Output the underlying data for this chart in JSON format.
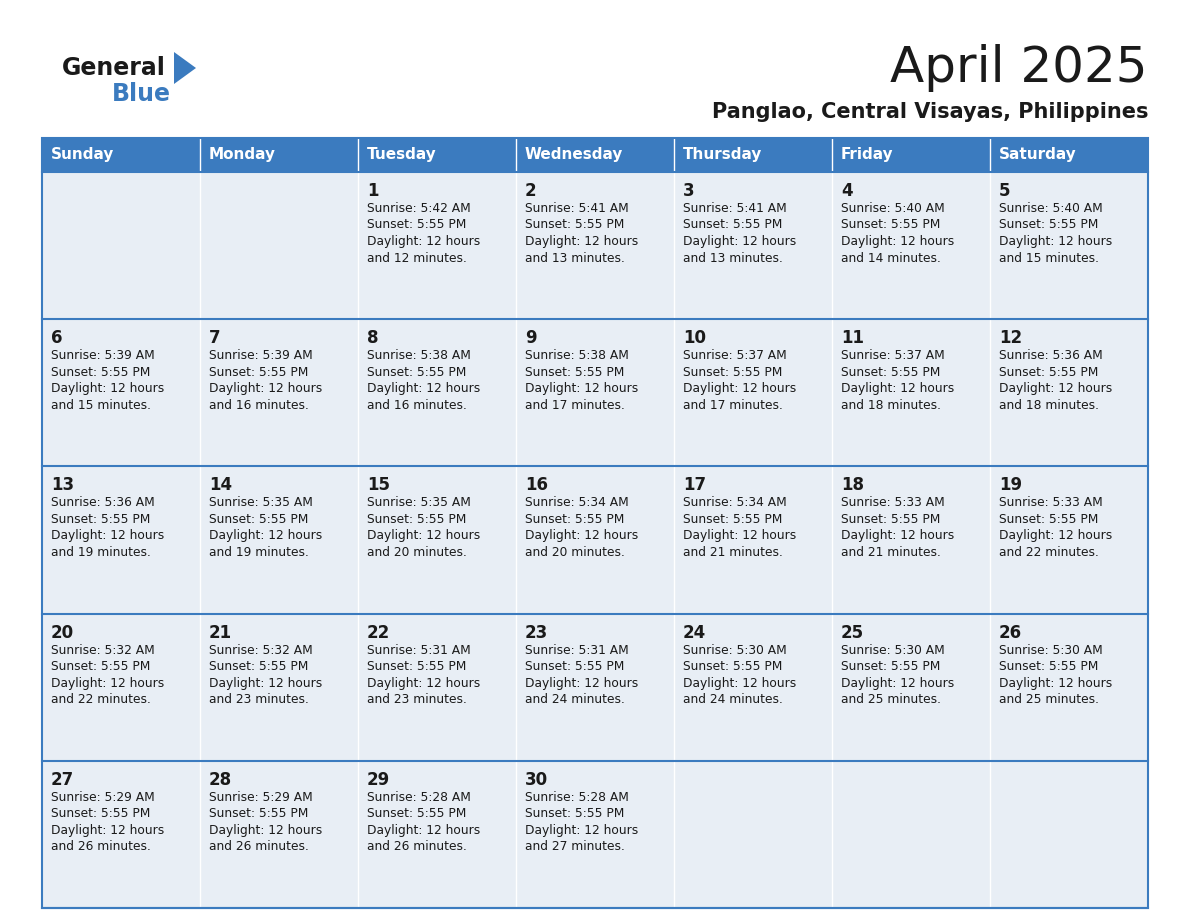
{
  "title": "April 2025",
  "subtitle": "Panglao, Central Visayas, Philippines",
  "header_color": "#3b7bbf",
  "header_text_color": "#ffffff",
  "cell_bg_color": "#e8eef5",
  "border_color": "#3b7bbf",
  "grid_line_color": "#ffffff",
  "row_div_color": "#3b7bbf",
  "days_of_week": [
    "Sunday",
    "Monday",
    "Tuesday",
    "Wednesday",
    "Thursday",
    "Friday",
    "Saturday"
  ],
  "logo_text1": "General",
  "logo_text2": "Blue",
  "logo_color1": "#1a1a1a",
  "logo_color2": "#3b7bbf",
  "logo_triangle_color": "#3b7bbf",
  "title_color": "#1a1a1a",
  "title_fontsize": 36,
  "subtitle_fontsize": 15,
  "day_num_fontsize": 12,
  "cell_text_fontsize": 8.8,
  "header_fontsize": 11,
  "calendar": [
    [
      {
        "day": "",
        "sunrise": "",
        "sunset": "",
        "daylight": ""
      },
      {
        "day": "",
        "sunrise": "",
        "sunset": "",
        "daylight": ""
      },
      {
        "day": "1",
        "sunrise": "5:42 AM",
        "sunset": "5:55 PM",
        "daylight": "12 hours and 12 minutes."
      },
      {
        "day": "2",
        "sunrise": "5:41 AM",
        "sunset": "5:55 PM",
        "daylight": "12 hours and 13 minutes."
      },
      {
        "day": "3",
        "sunrise": "5:41 AM",
        "sunset": "5:55 PM",
        "daylight": "12 hours and 13 minutes."
      },
      {
        "day": "4",
        "sunrise": "5:40 AM",
        "sunset": "5:55 PM",
        "daylight": "12 hours and 14 minutes."
      },
      {
        "day": "5",
        "sunrise": "5:40 AM",
        "sunset": "5:55 PM",
        "daylight": "12 hours and 15 minutes."
      }
    ],
    [
      {
        "day": "6",
        "sunrise": "5:39 AM",
        "sunset": "5:55 PM",
        "daylight": "12 hours and 15 minutes."
      },
      {
        "day": "7",
        "sunrise": "5:39 AM",
        "sunset": "5:55 PM",
        "daylight": "12 hours and 16 minutes."
      },
      {
        "day": "8",
        "sunrise": "5:38 AM",
        "sunset": "5:55 PM",
        "daylight": "12 hours and 16 minutes."
      },
      {
        "day": "9",
        "sunrise": "5:38 AM",
        "sunset": "5:55 PM",
        "daylight": "12 hours and 17 minutes."
      },
      {
        "day": "10",
        "sunrise": "5:37 AM",
        "sunset": "5:55 PM",
        "daylight": "12 hours and 17 minutes."
      },
      {
        "day": "11",
        "sunrise": "5:37 AM",
        "sunset": "5:55 PM",
        "daylight": "12 hours and 18 minutes."
      },
      {
        "day": "12",
        "sunrise": "5:36 AM",
        "sunset": "5:55 PM",
        "daylight": "12 hours and 18 minutes."
      }
    ],
    [
      {
        "day": "13",
        "sunrise": "5:36 AM",
        "sunset": "5:55 PM",
        "daylight": "12 hours and 19 minutes."
      },
      {
        "day": "14",
        "sunrise": "5:35 AM",
        "sunset": "5:55 PM",
        "daylight": "12 hours and 19 minutes."
      },
      {
        "day": "15",
        "sunrise": "5:35 AM",
        "sunset": "5:55 PM",
        "daylight": "12 hours and 20 minutes."
      },
      {
        "day": "16",
        "sunrise": "5:34 AM",
        "sunset": "5:55 PM",
        "daylight": "12 hours and 20 minutes."
      },
      {
        "day": "17",
        "sunrise": "5:34 AM",
        "sunset": "5:55 PM",
        "daylight": "12 hours and 21 minutes."
      },
      {
        "day": "18",
        "sunrise": "5:33 AM",
        "sunset": "5:55 PM",
        "daylight": "12 hours and 21 minutes."
      },
      {
        "day": "19",
        "sunrise": "5:33 AM",
        "sunset": "5:55 PM",
        "daylight": "12 hours and 22 minutes."
      }
    ],
    [
      {
        "day": "20",
        "sunrise": "5:32 AM",
        "sunset": "5:55 PM",
        "daylight": "12 hours and 22 minutes."
      },
      {
        "day": "21",
        "sunrise": "5:32 AM",
        "sunset": "5:55 PM",
        "daylight": "12 hours and 23 minutes."
      },
      {
        "day": "22",
        "sunrise": "5:31 AM",
        "sunset": "5:55 PM",
        "daylight": "12 hours and 23 minutes."
      },
      {
        "day": "23",
        "sunrise": "5:31 AM",
        "sunset": "5:55 PM",
        "daylight": "12 hours and 24 minutes."
      },
      {
        "day": "24",
        "sunrise": "5:30 AM",
        "sunset": "5:55 PM",
        "daylight": "12 hours and 24 minutes."
      },
      {
        "day": "25",
        "sunrise": "5:30 AM",
        "sunset": "5:55 PM",
        "daylight": "12 hours and 25 minutes."
      },
      {
        "day": "26",
        "sunrise": "5:30 AM",
        "sunset": "5:55 PM",
        "daylight": "12 hours and 25 minutes."
      }
    ],
    [
      {
        "day": "27",
        "sunrise": "5:29 AM",
        "sunset": "5:55 PM",
        "daylight": "12 hours and 26 minutes."
      },
      {
        "day": "28",
        "sunrise": "5:29 AM",
        "sunset": "5:55 PM",
        "daylight": "12 hours and 26 minutes."
      },
      {
        "day": "29",
        "sunrise": "5:28 AM",
        "sunset": "5:55 PM",
        "daylight": "12 hours and 26 minutes."
      },
      {
        "day": "30",
        "sunrise": "5:28 AM",
        "sunset": "5:55 PM",
        "daylight": "12 hours and 27 minutes."
      },
      {
        "day": "",
        "sunrise": "",
        "sunset": "",
        "daylight": ""
      },
      {
        "day": "",
        "sunrise": "",
        "sunset": "",
        "daylight": ""
      },
      {
        "day": "",
        "sunrise": "",
        "sunset": "",
        "daylight": ""
      }
    ]
  ]
}
